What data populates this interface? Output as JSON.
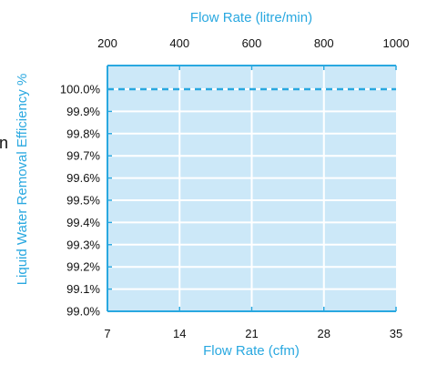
{
  "chart_data": {
    "type": "line",
    "title": "",
    "xlabel": "Flow Rate (cfm)",
    "x2label": "Flow Rate (litre/min)",
    "ylabel": "Liquid Water Removal Efficiency %",
    "xlim": [
      7,
      35
    ],
    "x2lim": [
      200,
      1000
    ],
    "ylim": [
      99.0,
      100.1
    ],
    "x_ticks": [
      "7",
      "14",
      "21",
      "28",
      "35"
    ],
    "x2_ticks": [
      "200",
      "400",
      "600",
      "800",
      "1000"
    ],
    "y_ticks": [
      "99.0%",
      "99.1%",
      "99.2%",
      "99.3%",
      "99.4%",
      "99.5%",
      "99.6%",
      "99.7%",
      "99.8%",
      "99.9%",
      "100.0%"
    ],
    "series": [
      {
        "x": [
          7,
          35
        ],
        "y": [
          100.0,
          100.0
        ],
        "style": "dashed"
      }
    ],
    "grid": true,
    "colors": {
      "plot_bg": "#cce8f8",
      "grid": "#ffffff",
      "axis": "#29a8e0",
      "series": "#29a8e0",
      "title_text": "#29a8e0"
    }
  },
  "stray_text": "n"
}
